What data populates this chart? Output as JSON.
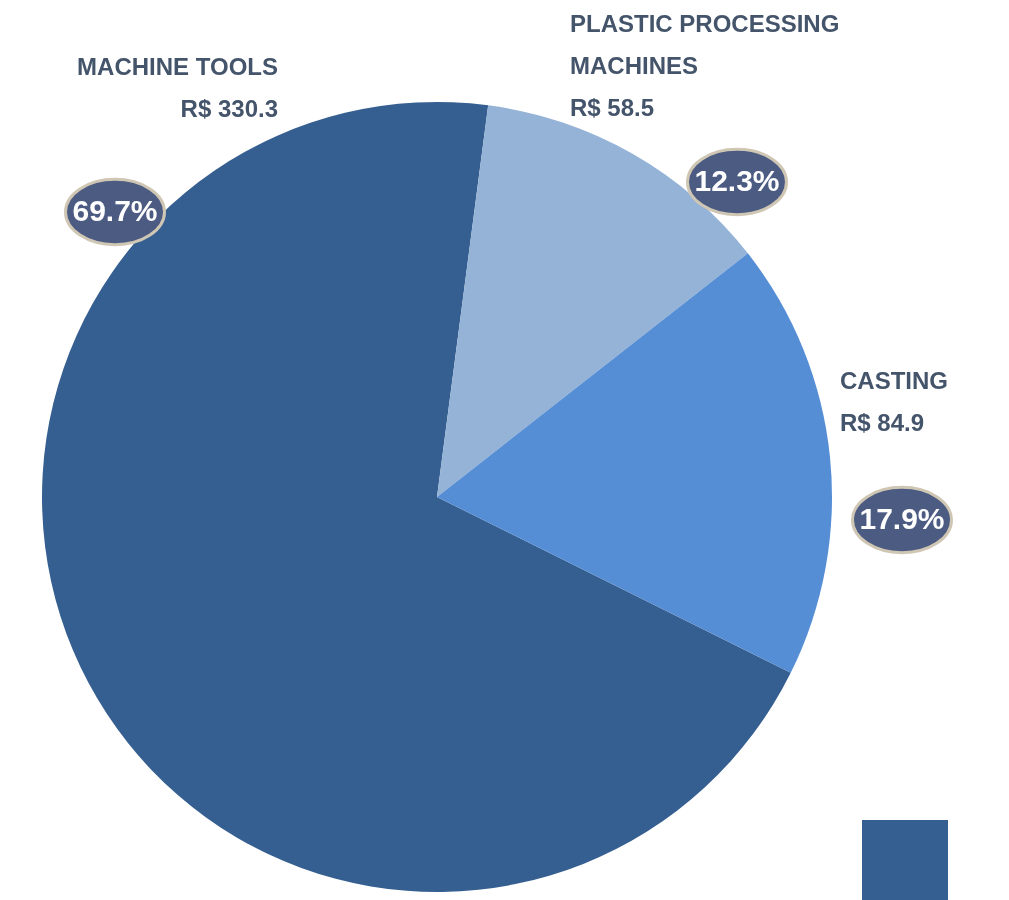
{
  "chart_data": {
    "type": "pie",
    "categories": [
      "MACHINE TOOLS",
      "PLASTIC PROCESSING MACHINES",
      "CASTING"
    ],
    "values": [
      330.3,
      58.5,
      84.9
    ],
    "value_labels": [
      "R$ 330.3",
      "R$ 58.5",
      "R$ 84.9"
    ],
    "colors": [
      "#365f91",
      "#95b3d7",
      "#558ed5"
    ],
    "annotations": [
      "69.7%",
      "12.3%",
      "17.9%"
    ]
  }
}
